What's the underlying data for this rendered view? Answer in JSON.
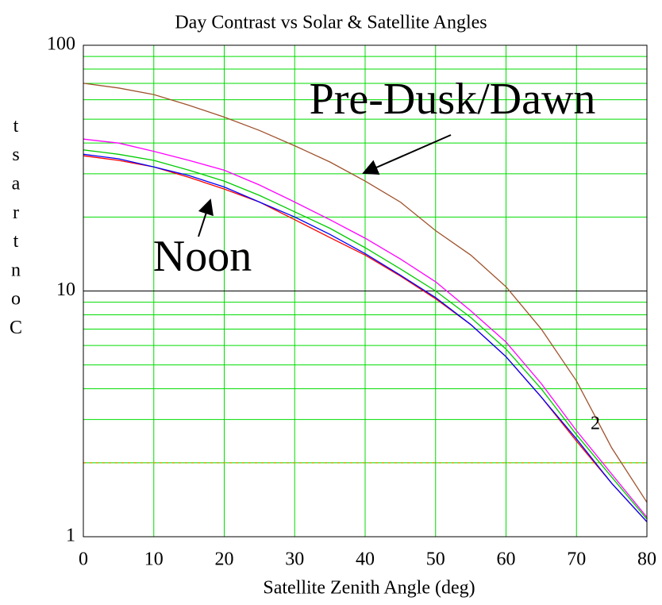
{
  "chart_data": {
    "type": "line",
    "title": "Day Contrast vs Solar & Satellite Angles",
    "xlabel": "Satellite Zenith Angle (deg)",
    "ylabel": "Contrast",
    "x": [
      0,
      5,
      10,
      15,
      20,
      25,
      30,
      35,
      40,
      45,
      50,
      55,
      60,
      65,
      70,
      75,
      80
    ],
    "series": [
      {
        "color": "#a0522d",
        "values": [
          70,
          67,
          63,
          57,
          51,
          45,
          39,
          33.5,
          28,
          23,
          17.6,
          14,
          10.4,
          7,
          4.3,
          2.3,
          1.38
        ]
      },
      {
        "color": "#ff00ff",
        "values": [
          41.5,
          40,
          37,
          34,
          31,
          27,
          23,
          19.5,
          16.4,
          13.5,
          10.9,
          8.3,
          6.2,
          4.2,
          2.7,
          1.8,
          1.2
        ]
      },
      {
        "color": "#00cc00",
        "values": [
          37.5,
          36,
          34,
          31,
          28,
          24.5,
          21,
          18,
          15,
          12.3,
          10,
          7.8,
          5.8,
          4,
          2.6,
          1.75,
          1.18
        ]
      },
      {
        "color": "#ff0000",
        "values": [
          35.5,
          34,
          32,
          29,
          26,
          23,
          19.5,
          16.5,
          14,
          11.5,
          9.3,
          7.3,
          5.4,
          3.7,
          2.45,
          1.65,
          1.15
        ]
      },
      {
        "color": "#0000ff",
        "values": [
          36,
          34.5,
          32,
          29.5,
          26.5,
          23,
          20,
          17,
          14.2,
          11.6,
          9.4,
          7.3,
          5.4,
          3.7,
          2.5,
          1.65,
          1.15
        ]
      }
    ],
    "xlim": [
      0,
      80
    ],
    "xticks": [
      0,
      10,
      20,
      30,
      40,
      50,
      60,
      70,
      80
    ],
    "ylim": [
      1,
      100
    ],
    "yticks": [
      1,
      10,
      100
    ],
    "ylog": true,
    "yminor": [
      2,
      3,
      4,
      5,
      6,
      7,
      8,
      9,
      20,
      30,
      40,
      50,
      60,
      70,
      80,
      90
    ],
    "grid_color": "#00dd00",
    "reference_line": {
      "value": 2,
      "color": "#e0a000"
    },
    "annotations": [
      {
        "text": "Pre-Dusk/Dawn"
      },
      {
        "text": "Noon"
      },
      {
        "text": "2"
      }
    ]
  }
}
